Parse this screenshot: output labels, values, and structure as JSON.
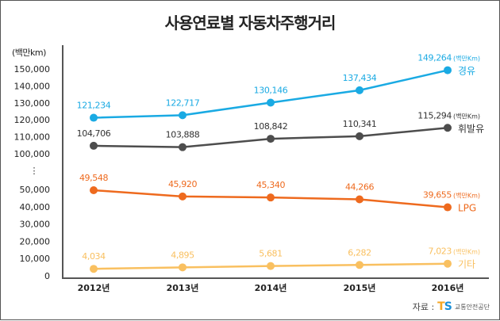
{
  "chart_data": {
    "type": "line",
    "title": "사용연료별 자동차주행거리",
    "ylabel": "(백만km)",
    "xlabel": "",
    "categories": [
      "2012년",
      "2013년",
      "2014년",
      "2015년",
      "2016년"
    ],
    "y_axis": {
      "broken": true,
      "upper_ticks": [
        {
          "value": 100000,
          "label": "100,000"
        },
        {
          "value": 110000,
          "label": "110,000"
        },
        {
          "value": 120000,
          "label": "120,000"
        },
        {
          "value": 130000,
          "label": "130,000"
        },
        {
          "value": 140000,
          "label": "140,000"
        },
        {
          "value": 150000,
          "label": "150,000"
        }
      ],
      "lower_ticks": [
        {
          "value": 0,
          "label": "0"
        },
        {
          "value": 10000,
          "label": "10,000"
        },
        {
          "value": 20000,
          "label": "20,000"
        },
        {
          "value": 30000,
          "label": "30,000"
        },
        {
          "value": 40000,
          "label": "40,000"
        },
        {
          "value": 50000,
          "label": "50,000"
        }
      ],
      "break_symbol": "⋮"
    },
    "grid": false,
    "legend": "inline-right",
    "unit_suffix": "(백만Km)",
    "series": [
      {
        "name": "경유",
        "color": "#1aaae3",
        "values": [
          121234,
          122717,
          130146,
          137434,
          149264
        ],
        "labels": [
          "121,234",
          "122,717",
          "130,146",
          "137,434",
          "149,264"
        ]
      },
      {
        "name": "휘발유",
        "color": "#4d4d4d",
        "values": [
          104706,
          103888,
          108842,
          110341,
          115294
        ],
        "labels": [
          "104,706",
          "103,888",
          "108,842",
          "110,341",
          "115,294"
        ]
      },
      {
        "name": "LPG",
        "color": "#ee6a1e",
        "values": [
          49548,
          45920,
          45340,
          44266,
          39655
        ],
        "labels": [
          "49,548",
          "45,920",
          "45,340",
          "44,266",
          "39,655"
        ]
      },
      {
        "name": "기타",
        "color": "#f9c060",
        "values": [
          4034,
          4895,
          5681,
          6282,
          7023
        ],
        "labels": [
          "4,034",
          "4,895",
          "5,681",
          "6,282",
          "7,023"
        ]
      }
    ]
  },
  "source": {
    "label": "자료 :",
    "logo_t": "T",
    "logo_s": "S",
    "org": "교통안전공단"
  }
}
